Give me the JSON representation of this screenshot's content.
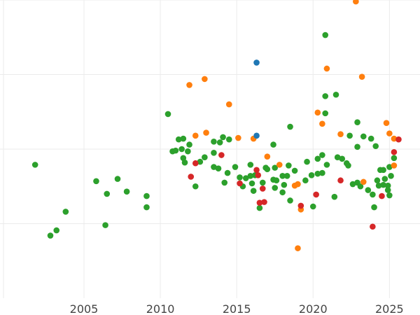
{
  "chart_data": {
    "type": "scatter",
    "title": "",
    "xlabel": "",
    "ylabel": "",
    "grid": true,
    "xlim": [
      1999.5,
      2027
    ],
    "ylim": [
      0,
      400
    ],
    "x_ticks": [
      {
        "value": 2005,
        "label": "2005"
      },
      {
        "value": 2010,
        "label": "2010"
      },
      {
        "value": 2015,
        "label": "2015"
      },
      {
        "value": 2020,
        "label": "2020"
      },
      {
        "value": 2025,
        "label": "2025"
      }
    ],
    "y_gridlines": [
      100,
      200,
      300,
      400
    ],
    "series": [
      {
        "name": "green",
        "color": "#2ca02c",
        "points": [
          [
            2001.8,
            179
          ],
          [
            2002.8,
            84
          ],
          [
            2003.2,
            91
          ],
          [
            2003.8,
            116
          ],
          [
            2005.8,
            157
          ],
          [
            2006.4,
            98
          ],
          [
            2006.5,
            140
          ],
          [
            2007.2,
            160
          ],
          [
            2007.8,
            143
          ],
          [
            2009.1,
            137
          ],
          [
            2009.1,
            122
          ],
          [
            2010.5,
            247
          ],
          [
            2010.8,
            197
          ],
          [
            2011.0,
            198
          ],
          [
            2011.2,
            213
          ],
          [
            2011.4,
            200
          ],
          [
            2011.5,
            214
          ],
          [
            2011.5,
            188
          ],
          [
            2011.6,
            182
          ],
          [
            2011.8,
            197
          ],
          [
            2011.9,
            206
          ],
          [
            2012.3,
            150
          ],
          [
            2012.6,
            183
          ],
          [
            2012.9,
            189
          ],
          [
            2013.5,
            210
          ],
          [
            2013.5,
            176
          ],
          [
            2013.5,
            195
          ],
          [
            2013.8,
            174
          ],
          [
            2013.9,
            209
          ],
          [
            2014.1,
            216
          ],
          [
            2014.2,
            155
          ],
          [
            2014.4,
            168
          ],
          [
            2014.5,
            213
          ],
          [
            2014.9,
            176
          ],
          [
            2015.2,
            162
          ],
          [
            2015.4,
            150
          ],
          [
            2015.6,
            161
          ],
          [
            2015.9,
            164
          ],
          [
            2015.9,
            179
          ],
          [
            2016.0,
            154
          ],
          [
            2016.1,
            144
          ],
          [
            2016.2,
            165
          ],
          [
            2016.5,
            121
          ],
          [
            2016.7,
            155
          ],
          [
            2016.9,
            175
          ],
          [
            2017.0,
            173
          ],
          [
            2017.4,
            206
          ],
          [
            2017.4,
            159
          ],
          [
            2017.5,
            148
          ],
          [
            2017.5,
            175
          ],
          [
            2017.6,
            158
          ],
          [
            2018.0,
            164
          ],
          [
            2018.0,
            142
          ],
          [
            2018.1,
            152
          ],
          [
            2018.3,
            164
          ],
          [
            2018.4,
            178
          ],
          [
            2018.5,
            230
          ],
          [
            2018.5,
            131
          ],
          [
            2018.8,
            171
          ],
          [
            2019.5,
            158
          ],
          [
            2019.6,
            183
          ],
          [
            2019.9,
            165
          ],
          [
            2020.0,
            123
          ],
          [
            2020.3,
            187
          ],
          [
            2020.3,
            167
          ],
          [
            2020.6,
            192
          ],
          [
            2020.6,
            168
          ],
          [
            2020.8,
            248
          ],
          [
            2020.8,
            271
          ],
          [
            2020.9,
            179
          ],
          [
            2020.8,
            353
          ],
          [
            2021.4,
            136
          ],
          [
            2021.5,
            273
          ],
          [
            2021.6,
            189
          ],
          [
            2021.9,
            187
          ],
          [
            2022.2,
            181
          ],
          [
            2022.3,
            178
          ],
          [
            2022.4,
            218
          ],
          [
            2022.6,
            153
          ],
          [
            2022.9,
            155
          ],
          [
            2022.9,
            236
          ],
          [
            2022.9,
            203
          ],
          [
            2023.1,
            150
          ],
          [
            2023.3,
            217
          ],
          [
            2023.6,
            145
          ],
          [
            2023.8,
            214
          ],
          [
            2023.9,
            139
          ],
          [
            2024.0,
            122
          ],
          [
            2024.1,
            204
          ],
          [
            2024.2,
            158
          ],
          [
            2024.3,
            151
          ],
          [
            2024.4,
            172
          ],
          [
            2024.6,
            172
          ],
          [
            2024.6,
            152
          ],
          [
            2024.7,
            160
          ],
          [
            2024.9,
            145
          ],
          [
            2024.9,
            151
          ],
          [
            2025.0,
            176
          ],
          [
            2025.0,
            138
          ],
          [
            2025.1,
            164
          ],
          [
            2025.3,
            188
          ]
        ]
      },
      {
        "name": "orange",
        "color": "#ff7f0e",
        "points": [
          [
            2011.9,
            286
          ],
          [
            2012.3,
            218
          ],
          [
            2012.9,
            294
          ],
          [
            2013.0,
            222
          ],
          [
            2014.5,
            260
          ],
          [
            2015.1,
            215
          ],
          [
            2016.1,
            214
          ],
          [
            2017.0,
            190
          ],
          [
            2017.8,
            179
          ],
          [
            2018.8,
            151
          ],
          [
            2019.0,
            153
          ],
          [
            2019.2,
            119
          ],
          [
            2019.0,
            67
          ],
          [
            2020.3,
            249
          ],
          [
            2020.6,
            234
          ],
          [
            2020.9,
            308
          ],
          [
            2021.8,
            220
          ],
          [
            2022.8,
            398
          ],
          [
            2023.2,
            297
          ],
          [
            2023.3,
            156
          ],
          [
            2024.8,
            235
          ],
          [
            2025.0,
            221
          ],
          [
            2025.3,
            214
          ],
          [
            2025.3,
            178
          ]
        ]
      },
      {
        "name": "red",
        "color": "#d62728",
        "points": [
          [
            2012.0,
            163
          ],
          [
            2012.3,
            181
          ],
          [
            2014.0,
            192
          ],
          [
            2015.2,
            154
          ],
          [
            2016.3,
            172
          ],
          [
            2016.4,
            165
          ],
          [
            2016.5,
            128
          ],
          [
            2016.7,
            147
          ],
          [
            2016.8,
            129
          ],
          [
            2019.2,
            124
          ],
          [
            2020.2,
            139
          ],
          [
            2021.8,
            158
          ],
          [
            2023.9,
            96
          ],
          [
            2024.5,
            137
          ],
          [
            2025.3,
            196
          ],
          [
            2025.6,
            213
          ]
        ]
      },
      {
        "name": "blue",
        "color": "#1f77b4",
        "points": [
          [
            2016.3,
            316
          ],
          [
            2016.3,
            218
          ]
        ]
      }
    ]
  }
}
